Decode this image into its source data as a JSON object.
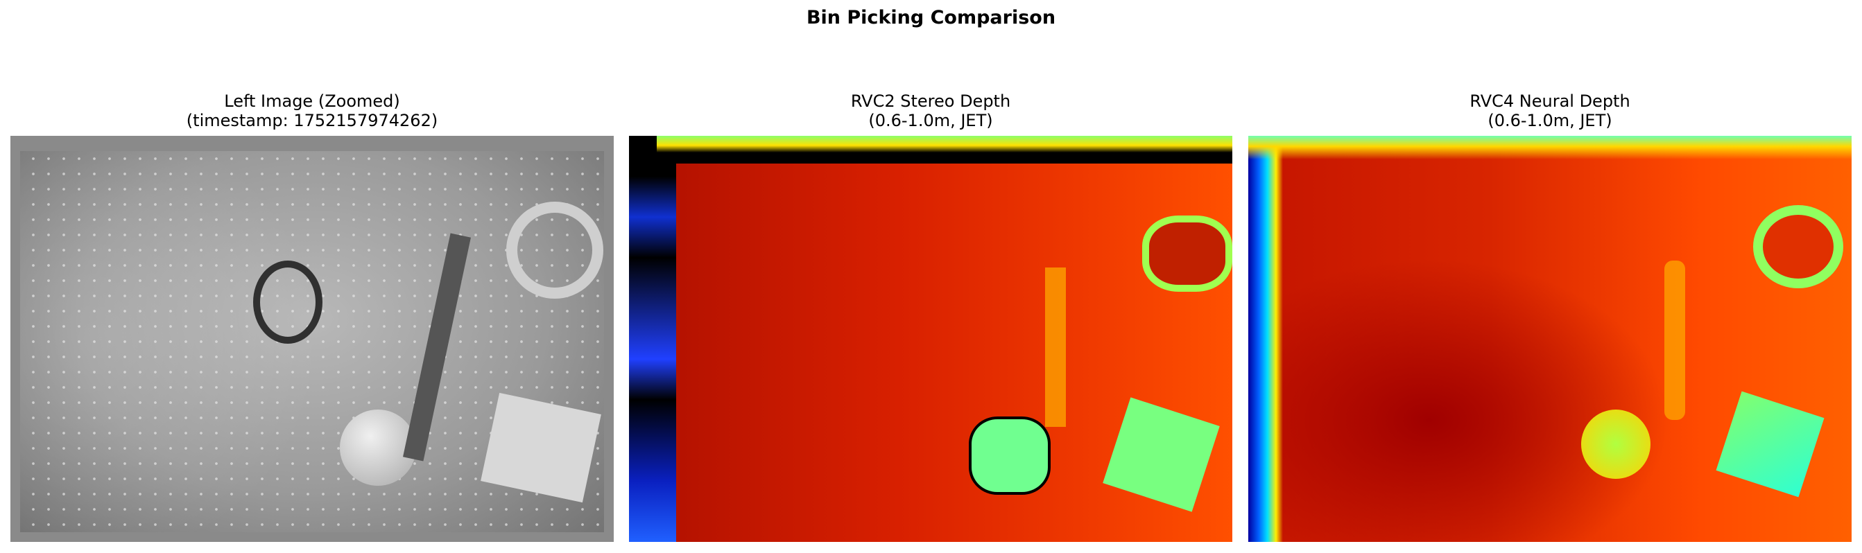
{
  "figure": {
    "title": "Bin Picking Comparison",
    "panels": [
      {
        "title_line1": "Left Image (Zoomed)",
        "title_line2": "(timestamp: 1752157974262)",
        "colormap": "gray"
      },
      {
        "title_line1": "RVC2 Stereo Depth",
        "title_line2": "(0.6-1.0m, JET)",
        "colormap": "jet"
      },
      {
        "title_line1": "RVC4 Neural Depth",
        "title_line2": "(0.6-1.0m, JET)",
        "colormap": "jet"
      }
    ]
  }
}
